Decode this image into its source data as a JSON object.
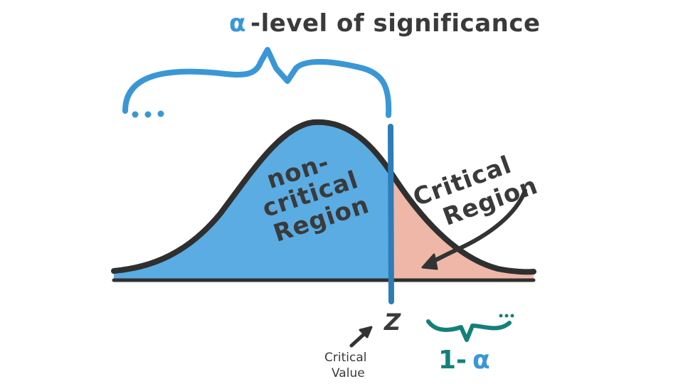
{
  "title": {
    "alpha_symbol": "α",
    "rest": "-level of significance"
  },
  "regions": {
    "non_critical": [
      "non-",
      "critical",
      "Region"
    ],
    "critical": [
      "Critical",
      "Region"
    ]
  },
  "critical_value": {
    "symbol": "Z",
    "label_lines": [
      "Critical",
      "Value"
    ]
  },
  "one_minus_alpha": {
    "one_minus": "1-",
    "alpha": "α"
  },
  "colors": {
    "non_critical_fill": "#5aace3",
    "critical_fill": "#eeb7a8",
    "curve": "#2f2f2f",
    "critical_line": "#2c7db8",
    "brace_alpha": "#3a97d6",
    "brace_one_minus_alpha": "#14807a",
    "text": "#3a3a3a"
  }
}
